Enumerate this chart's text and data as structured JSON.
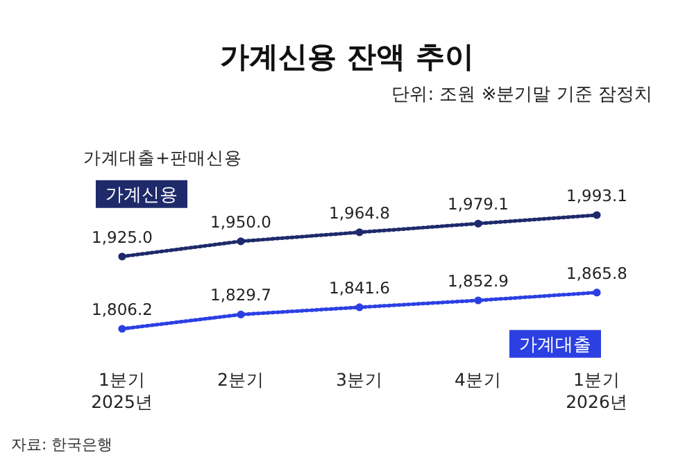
{
  "chart_data": {
    "type": "line",
    "title": "가계신용 잔액 추이",
    "subtitle": "단위: 조원 ※분기말 기준 잠정치",
    "annotations": [
      "가계대출+판매신용",
      "자료: 한국은행"
    ],
    "categories": [
      "1분기\n2025년",
      "2분기",
      "3분기",
      "4분기",
      "1분기\n2026년"
    ],
    "series": [
      {
        "name": "가계신용",
        "color": "#1f2a6b",
        "values": [
          1925.0,
          1950.0,
          1964.8,
          1979.1,
          1993.1
        ],
        "value_labels": [
          "1,925.0",
          "1,950.0",
          "1,964.8",
          "1,979.1",
          "1,993.1"
        ]
      },
      {
        "name": "가계대출",
        "color": "#2b3fe3",
        "values": [
          1806.2,
          1829.7,
          1841.6,
          1852.9,
          1865.8
        ],
        "value_labels": [
          "1,806.2",
          "1,829.7",
          "1,841.6",
          "1,852.9",
          "1,865.8"
        ]
      }
    ],
    "marker": "circle",
    "line_style": "dotted",
    "tick_labels": "x"
  }
}
